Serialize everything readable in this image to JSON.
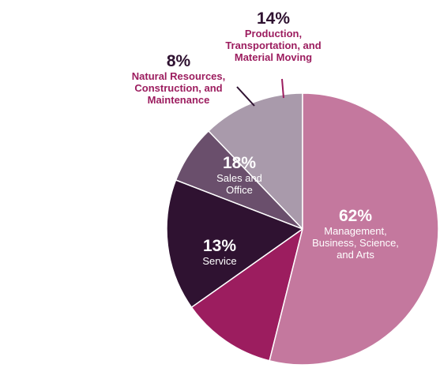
{
  "chart_data": {
    "type": "pie",
    "categories": [
      "Management, Business, Science, and Arts",
      "Service",
      "Sales and Office",
      "Natural Resources, Construction, and Maintenance",
      "Production, Transportation, and Material Moving"
    ],
    "values": [
      62,
      13,
      18,
      8,
      14
    ],
    "value_labels": [
      "62%",
      "13%",
      "18%",
      "8%",
      "14%"
    ],
    "colors": [
      "#c4789e",
      "#9c1d5f",
      "#2f1231",
      "#6a4f6c",
      "#a99aab"
    ]
  }
}
